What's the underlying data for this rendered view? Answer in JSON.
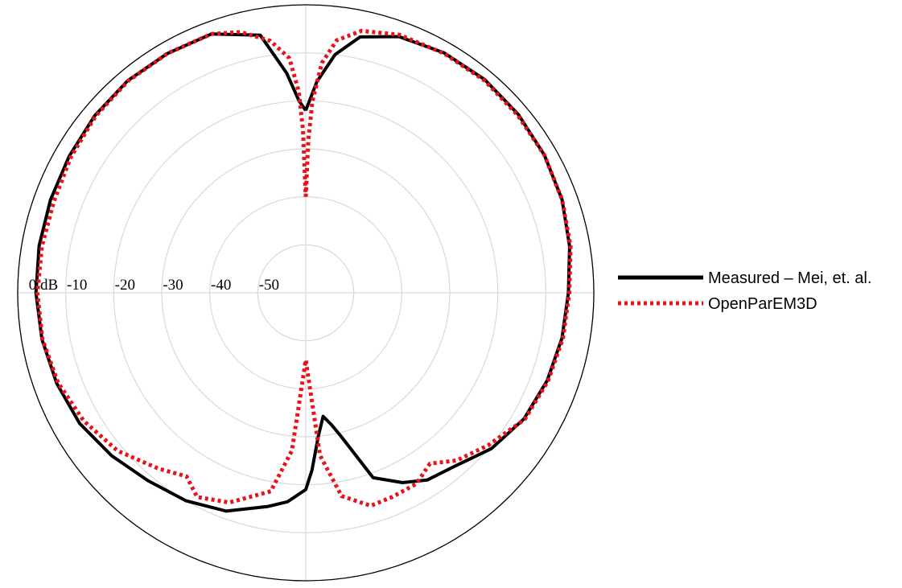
{
  "chart_data": {
    "type": "polar-line",
    "title": "",
    "radial_unit": "dB",
    "radial_ticks": [
      "0 dB",
      "-10",
      "-20",
      "-30",
      "-40",
      "-50"
    ],
    "radial_range": [
      -60,
      0
    ],
    "angle_convention": "degrees clockwise from top, 0-360",
    "grid": true,
    "legend_position": "right",
    "series": [
      {
        "name": "Measured – Mei, et. al.",
        "color": "#000000",
        "style": "solid",
        "points": [
          [
            0,
            -22
          ],
          [
            3,
            -16
          ],
          [
            7,
            -10
          ],
          [
            12,
            -5.5
          ],
          [
            20,
            -3.2
          ],
          [
            30,
            -2.3
          ],
          [
            40,
            -2
          ],
          [
            50,
            -2.2
          ],
          [
            60,
            -2.6
          ],
          [
            70,
            -3.2
          ],
          [
            80,
            -4.2
          ],
          [
            90,
            -5.3
          ],
          [
            100,
            -5.8
          ],
          [
            110,
            -6.5
          ],
          [
            120,
            -7.5
          ],
          [
            130,
            -9.5
          ],
          [
            140,
            -12.5
          ],
          [
            147,
            -13.5
          ],
          [
            153,
            -15.6
          ],
          [
            160,
            -19
          ],
          [
            166,
            -29
          ],
          [
            169,
            -32
          ],
          [
            172,
            -34
          ],
          [
            175,
            -30
          ],
          [
            178,
            -23
          ],
          [
            180,
            -19
          ],
          [
            185,
            -16.3
          ],
          [
            190,
            -14.8
          ],
          [
            200,
            -11.6
          ],
          [
            210,
            -10
          ],
          [
            220,
            -8.9
          ],
          [
            230,
            -7.2
          ],
          [
            240,
            -5.6
          ],
          [
            250,
            -4.8
          ],
          [
            260,
            -4.2
          ],
          [
            270,
            -3.8
          ],
          [
            280,
            -3.6
          ],
          [
            290,
            -3.4
          ],
          [
            300,
            -3.1
          ],
          [
            310,
            -2.6
          ],
          [
            320,
            -2.3
          ],
          [
            330,
            -2.4
          ],
          [
            340,
            -2.6
          ],
          [
            350,
            -5.5
          ],
          [
            355,
            -14
          ],
          [
            358,
            -20
          ],
          [
            360,
            -22
          ]
        ]
      },
      {
        "name": "OpenParEM3D",
        "color": "#e8141c",
        "style": "dotted",
        "points": [
          [
            0,
            -40
          ],
          [
            1,
            -28
          ],
          [
            2,
            -20
          ],
          [
            4,
            -12
          ],
          [
            7,
            -7
          ],
          [
            12,
            -4.2
          ],
          [
            20,
            -2.8
          ],
          [
            30,
            -2.4
          ],
          [
            40,
            -2.2
          ],
          [
            50,
            -2.4
          ],
          [
            60,
            -2.6
          ],
          [
            70,
            -3.2
          ],
          [
            80,
            -4
          ],
          [
            90,
            -5.1
          ],
          [
            100,
            -5.6
          ],
          [
            110,
            -6.3
          ],
          [
            120,
            -7.3
          ],
          [
            130,
            -10.5
          ],
          [
            138,
            -13
          ],
          [
            144,
            -16
          ],
          [
            150,
            -14
          ],
          [
            157,
            -13.8
          ],
          [
            163,
            -13.6
          ],
          [
            170,
            -17
          ],
          [
            175,
            -26
          ],
          [
            180,
            -46
          ],
          [
            185,
            -27
          ],
          [
            190,
            -18
          ],
          [
            200,
            -13.5
          ],
          [
            208,
            -11.8
          ],
          [
            213,
            -14.4
          ],
          [
            220,
            -12.2
          ],
          [
            230,
            -8.8
          ],
          [
            240,
            -6.6
          ],
          [
            250,
            -5.1
          ],
          [
            260,
            -4.3
          ],
          [
            270,
            -4.1
          ],
          [
            280,
            -4.2
          ],
          [
            290,
            -4.2
          ],
          [
            300,
            -3.5
          ],
          [
            310,
            -2.8
          ],
          [
            320,
            -2.4
          ],
          [
            330,
            -2.4
          ],
          [
            340,
            -2.6
          ],
          [
            346,
            -4
          ],
          [
            352,
            -7
          ],
          [
            356,
            -11
          ],
          [
            358,
            -18
          ],
          [
            359,
            -26
          ],
          [
            360,
            -40
          ]
        ]
      }
    ]
  }
}
